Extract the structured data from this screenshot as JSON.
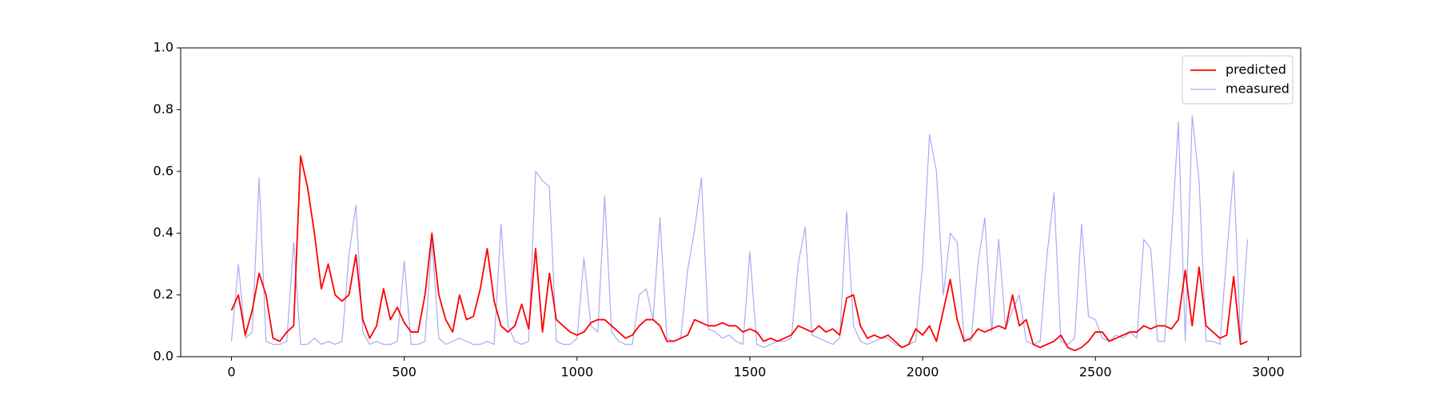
{
  "chart_data": {
    "type": "line",
    "x": [
      0,
      20,
      40,
      60,
      80,
      100,
      120,
      140,
      160,
      180,
      200,
      220,
      240,
      260,
      280,
      300,
      320,
      340,
      360,
      380,
      400,
      420,
      440,
      460,
      480,
      500,
      520,
      540,
      560,
      580,
      600,
      620,
      640,
      660,
      680,
      700,
      720,
      740,
      760,
      780,
      800,
      820,
      840,
      860,
      880,
      900,
      920,
      940,
      960,
      980,
      1000,
      1020,
      1040,
      1060,
      1080,
      1100,
      1120,
      1140,
      1160,
      1180,
      1200,
      1220,
      1240,
      1260,
      1280,
      1300,
      1320,
      1340,
      1360,
      1380,
      1400,
      1420,
      1440,
      1460,
      1480,
      1500,
      1520,
      1540,
      1560,
      1580,
      1600,
      1620,
      1640,
      1660,
      1680,
      1700,
      1720,
      1740,
      1760,
      1780,
      1800,
      1820,
      1840,
      1860,
      1880,
      1900,
      1920,
      1940,
      1960,
      1980,
      2000,
      2020,
      2040,
      2060,
      2080,
      2100,
      2120,
      2140,
      2160,
      2180,
      2200,
      2220,
      2240,
      2260,
      2280,
      2300,
      2320,
      2340,
      2360,
      2380,
      2400,
      2420,
      2440,
      2460,
      2480,
      2500,
      2520,
      2540,
      2560,
      2580,
      2600,
      2620,
      2640,
      2660,
      2680,
      2700,
      2720,
      2740,
      2760,
      2780,
      2800,
      2820,
      2840,
      2860,
      2880,
      2900,
      2920,
      2940
    ],
    "series": [
      {
        "name": "predicted",
        "color": "#ff0000",
        "width": 1.8,
        "values": [
          0.15,
          0.2,
          0.07,
          0.15,
          0.27,
          0.2,
          0.06,
          0.05,
          0.08,
          0.1,
          0.65,
          0.55,
          0.4,
          0.22,
          0.3,
          0.2,
          0.18,
          0.2,
          0.33,
          0.12,
          0.06,
          0.1,
          0.22,
          0.12,
          0.16,
          0.11,
          0.08,
          0.08,
          0.2,
          0.4,
          0.2,
          0.12,
          0.08,
          0.2,
          0.12,
          0.13,
          0.22,
          0.35,
          0.18,
          0.1,
          0.08,
          0.1,
          0.17,
          0.09,
          0.35,
          0.08,
          0.27,
          0.12,
          0.1,
          0.08,
          0.07,
          0.08,
          0.11,
          0.12,
          0.12,
          0.1,
          0.08,
          0.06,
          0.07,
          0.1,
          0.12,
          0.12,
          0.1,
          0.05,
          0.05,
          0.06,
          0.07,
          0.12,
          0.11,
          0.1,
          0.1,
          0.11,
          0.1,
          0.1,
          0.08,
          0.09,
          0.08,
          0.05,
          0.06,
          0.05,
          0.06,
          0.07,
          0.1,
          0.09,
          0.08,
          0.1,
          0.08,
          0.09,
          0.07,
          0.19,
          0.2,
          0.1,
          0.06,
          0.07,
          0.06,
          0.07,
          0.05,
          0.03,
          0.04,
          0.09,
          0.07,
          0.1,
          0.05,
          0.15,
          0.25,
          0.12,
          0.05,
          0.06,
          0.09,
          0.08,
          0.09,
          0.1,
          0.09,
          0.2,
          0.1,
          0.12,
          0.04,
          0.03,
          0.04,
          0.05,
          0.07,
          0.03,
          0.02,
          0.03,
          0.05,
          0.08,
          0.08,
          0.05,
          0.06,
          0.07,
          0.08,
          0.08,
          0.1,
          0.09,
          0.1,
          0.1,
          0.09,
          0.12,
          0.28,
          0.1,
          0.29,
          0.1,
          0.08,
          0.06,
          0.07,
          0.26,
          0.04,
          0.05
        ]
      },
      {
        "name": "measured",
        "color": "#aaaaf4",
        "width": 1.2,
        "values": [
          0.05,
          0.3,
          0.06,
          0.08,
          0.58,
          0.05,
          0.04,
          0.04,
          0.05,
          0.37,
          0.04,
          0.04,
          0.06,
          0.04,
          0.05,
          0.04,
          0.05,
          0.33,
          0.49,
          0.08,
          0.04,
          0.05,
          0.04,
          0.04,
          0.05,
          0.31,
          0.04,
          0.04,
          0.05,
          0.38,
          0.06,
          0.04,
          0.05,
          0.06,
          0.05,
          0.04,
          0.04,
          0.05,
          0.04,
          0.43,
          0.1,
          0.05,
          0.04,
          0.05,
          0.6,
          0.57,
          0.55,
          0.05,
          0.04,
          0.04,
          0.06,
          0.32,
          0.1,
          0.08,
          0.52,
          0.08,
          0.05,
          0.04,
          0.04,
          0.2,
          0.22,
          0.12,
          0.45,
          0.06,
          0.05,
          0.06,
          0.28,
          0.41,
          0.58,
          0.09,
          0.08,
          0.06,
          0.07,
          0.05,
          0.04,
          0.34,
          0.04,
          0.03,
          0.04,
          0.05,
          0.05,
          0.06,
          0.3,
          0.42,
          0.07,
          0.06,
          0.05,
          0.04,
          0.06,
          0.47,
          0.1,
          0.05,
          0.04,
          0.05,
          0.06,
          0.06,
          0.04,
          0.03,
          0.04,
          0.05,
          0.3,
          0.72,
          0.6,
          0.2,
          0.4,
          0.37,
          0.06,
          0.05,
          0.3,
          0.45,
          0.08,
          0.38,
          0.09,
          0.15,
          0.2,
          0.05,
          0.04,
          0.05,
          0.33,
          0.53,
          0.05,
          0.04,
          0.06,
          0.43,
          0.13,
          0.12,
          0.06,
          0.05,
          0.07,
          0.06,
          0.08,
          0.06,
          0.38,
          0.35,
          0.05,
          0.05,
          0.38,
          0.76,
          0.05,
          0.78,
          0.57,
          0.05,
          0.05,
          0.04,
          0.33,
          0.6,
          0.05,
          0.38
        ]
      }
    ],
    "xlim": [
      -147,
      3094
    ],
    "ylim": [
      0,
      1
    ],
    "xticks": [
      0,
      500,
      1000,
      1500,
      2000,
      2500,
      3000
    ],
    "yticks": [
      {
        "value": 0,
        "label": "0.0"
      },
      0.2,
      0.4,
      0.6,
      0.8,
      {
        "value": 1,
        "label": "1.0"
      }
    ],
    "legend": "upper right"
  }
}
